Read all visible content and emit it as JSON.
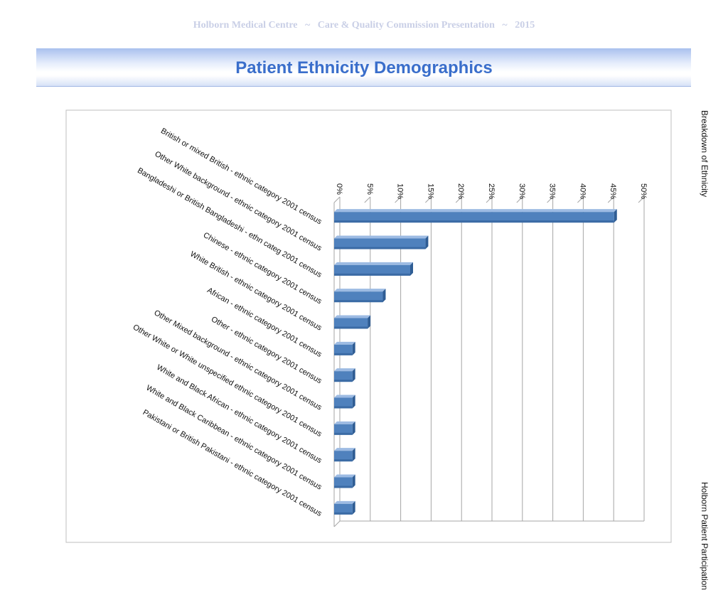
{
  "header": {
    "text": "Holborn Medical Centre   ~   Care & Quality Commission Presentation   ~   2015"
  },
  "title": "Patient Ethnicity Demographics",
  "side_labels": {
    "top": "Breakdown of Ethnicity",
    "bottom": "Holborn Patient Participation"
  },
  "colors": {
    "bar_front": "#4f81bd",
    "bar_top": "#9dbbe3",
    "bar_side": "#2f5d94",
    "grid": "#a6a6a6",
    "title": "#3a6ecb"
  },
  "chart_data": {
    "type": "bar",
    "orientation": "horizontal",
    "title": "Breakdown of Ethnicity",
    "xlabel": "",
    "ylabel": "",
    "xlim": [
      0,
      0.5
    ],
    "ticks": [
      "0%",
      "5%",
      "10%",
      "15%",
      "20%",
      "25%",
      "30%",
      "35%",
      "40%",
      "45%",
      "50%"
    ],
    "categories": [
      "British or mixed British - ethnic category 2001 census",
      "Other White background - ethnic category 2001 census",
      "Bangladeshi or British Bangladeshi - ethn categ 2001 census",
      "Chinese - ethnic category 2001 census",
      "White British - ethnic category 2001 census",
      "African - ethnic category 2001 census",
      "Other - ethnic category 2001 census",
      "Other Mixed background - ethnic category 2001 census",
      "Other White or White unspecified ethnic category 2001 census",
      "White and Black African - ethnic category 2001 census",
      "White and Black Caribbean - ethnic category 2001 census",
      "Pakistani or British Pakistani - ethnic category 2001 census"
    ],
    "values": [
      0.46,
      0.15,
      0.125,
      0.08,
      0.055,
      0.03,
      0.03,
      0.03,
      0.03,
      0.03,
      0.03,
      0.03
    ]
  }
}
